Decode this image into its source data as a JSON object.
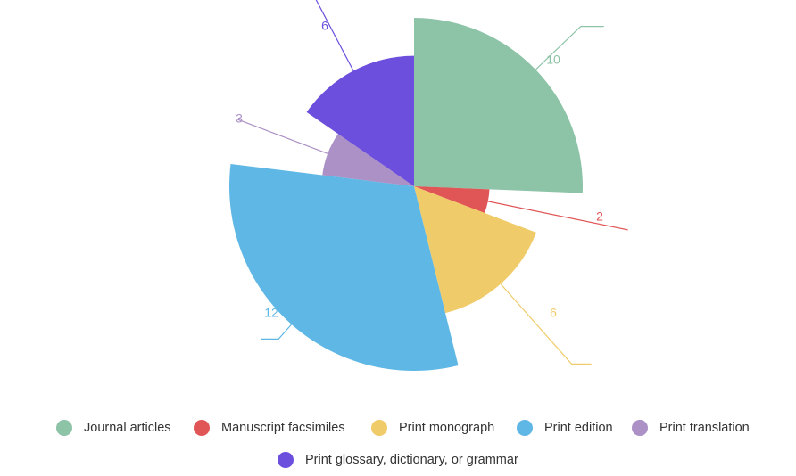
{
  "chart_data": {
    "type": "pie",
    "variant": "variable-radius",
    "categories": [
      "Journal articles",
      "Manuscript facsimiles",
      "Print monograph",
      "Print edition",
      "Print translation",
      "Print glossary, dictionary, or grammar"
    ],
    "values": [
      10,
      2,
      6,
      12,
      3,
      6
    ],
    "colors": [
      "#8dc3a7",
      "#e05657",
      "#f0cb69",
      "#5fb7e5",
      "#ab91c5",
      "#6c4fdc"
    ],
    "title": "",
    "legend_position": "bottom",
    "data_labels": [
      "10",
      "2",
      "6",
      "12",
      "3",
      "6"
    ]
  }
}
